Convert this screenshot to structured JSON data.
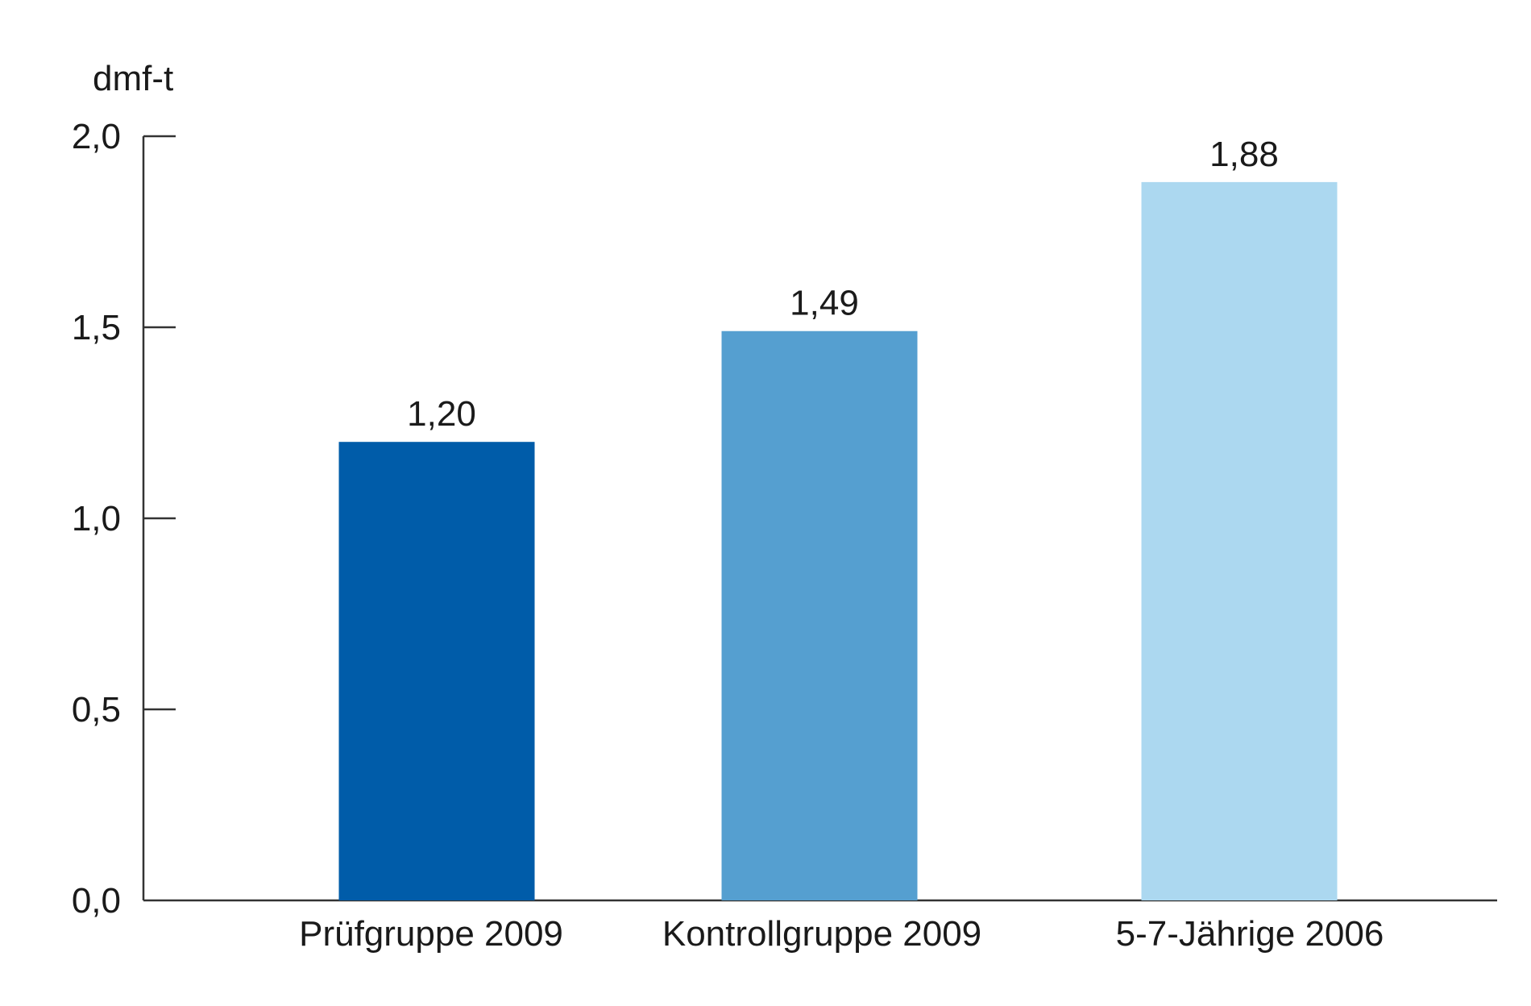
{
  "chart_data": {
    "type": "bar",
    "ylabel": "dmf-t",
    "ylim": [
      0,
      2.0
    ],
    "yticks": [
      {
        "value": 0.0,
        "label": "0,0"
      },
      {
        "value": 0.5,
        "label": "0,5"
      },
      {
        "value": 1.0,
        "label": "1,0"
      },
      {
        "value": 1.5,
        "label": "1,5"
      },
      {
        "value": 2.0,
        "label": "2,0"
      }
    ],
    "categories": [
      "Prüfgruppe 2009",
      "Kontrollgruppe 2009",
      "5-7-Jährige 2006"
    ],
    "values": [
      1.2,
      1.49,
      1.88
    ],
    "value_labels": [
      "1,20",
      "1,49",
      "1,88"
    ],
    "colors": [
      "#005ca9",
      "#559fd0",
      "#acd8f0"
    ],
    "grid": false,
    "legend": "none"
  }
}
